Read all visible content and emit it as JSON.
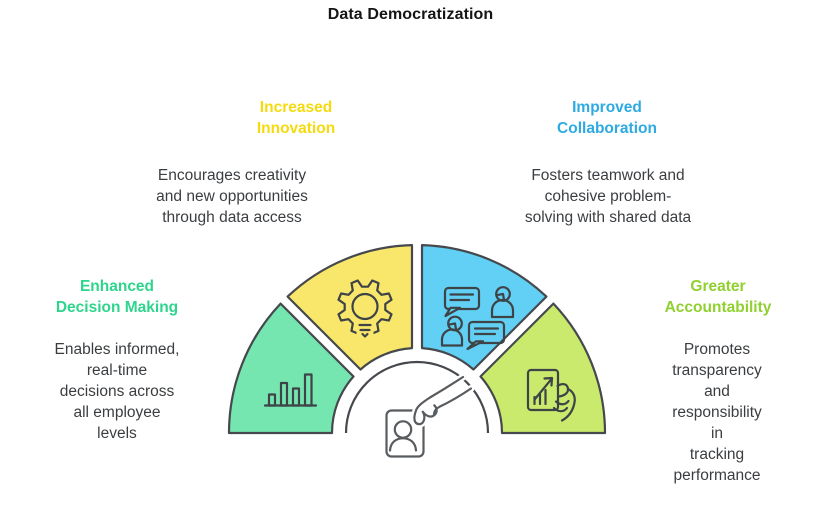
{
  "title": "Data Democratization",
  "colors": {
    "title_text": "#151515",
    "body_text": "#3b3e41",
    "outline": "#45494d",
    "icon_stroke": "#3e4347",
    "center_stroke": "#585c5f",
    "background": "#ffffff"
  },
  "center_icon": "hand-holding-id-badge",
  "segments": [
    {
      "name": "Enhanced Decision Making",
      "heading": "Enhanced\nDecision Making",
      "heading_color": "#2ed58c",
      "fill": "#75e6b0",
      "icon": "bar-chart",
      "body": "Enables informed,\nreal-time\ndecisions across\nall employee\nlevels"
    },
    {
      "name": "Increased Innovation",
      "heading": "Increased\nInnovation",
      "heading_color": "#f5db0e",
      "fill": "#f9e76c",
      "icon": "gear-lightbulb",
      "body": "Encourages creativity\nand new opportunities\nthrough data access"
    },
    {
      "name": "Improved Collaboration",
      "heading": "Improved\nCollaboration",
      "heading_color": "#2eaae2",
      "fill": "#62cff4",
      "icon": "people-chat",
      "body": "Fosters teamwork and\ncohesive problem-\nsolving with shared data"
    },
    {
      "name": "Greater Accountability",
      "heading": "Greater\nAccountability",
      "heading_color": "#90d02f",
      "fill": "#c9ea6c",
      "icon": "document-growth-hand",
      "body": "Promotes\ntransparency and\nresponsibility in\ntracking\nperformance"
    }
  ]
}
